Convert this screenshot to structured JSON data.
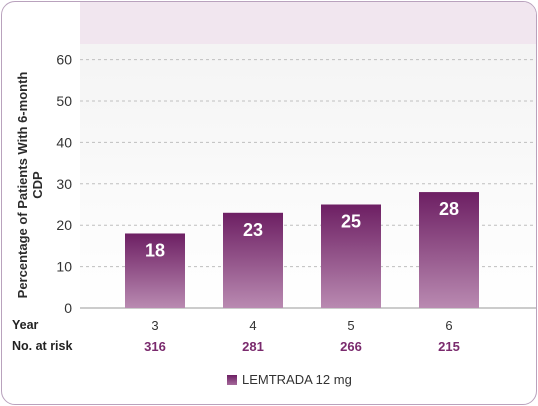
{
  "chart_data": {
    "type": "bar",
    "categories": [
      "3",
      "4",
      "5",
      "6"
    ],
    "values": [
      18,
      23,
      25,
      28
    ],
    "at_risk": [
      "316",
      "281",
      "266",
      "215"
    ],
    "ylabel": "Percentage of Patients With 6-month CDP",
    "ylim": [
      0,
      65
    ],
    "yticks": [
      0,
      10,
      20,
      30,
      40,
      50,
      60
    ],
    "grid": true,
    "legend": "bottom-center",
    "series": [
      {
        "name": "LEMTRADA 12 mg",
        "values": [
          18,
          23,
          25,
          28
        ]
      }
    ]
  },
  "labels": {
    "year_row": "Year",
    "at_risk_row": "No. at risk",
    "legend_entry": "LEMTRADA 12 mg"
  },
  "colors": {
    "bar_top": "#6d1f63",
    "bar_bottom": "#b98ab1",
    "at_risk_text": "#7a2a6d",
    "grid": "#bfbfbf"
  }
}
